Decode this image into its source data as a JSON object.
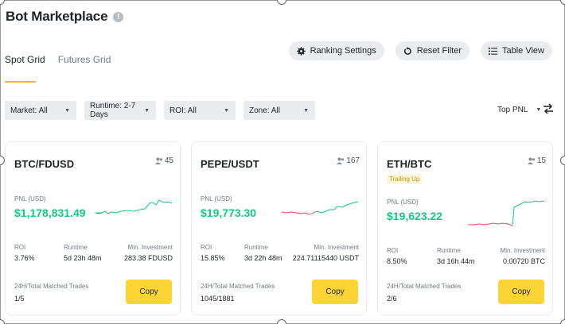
{
  "header": {
    "title": "Bot Marketplace",
    "info_icon": "info-icon"
  },
  "tabs": [
    {
      "label": "Spot Grid",
      "active": true
    },
    {
      "label": "Futures Grid",
      "active": false
    }
  ],
  "actions": {
    "ranking_settings": "Ranking Settings",
    "reset_filter": "Reset Filter",
    "table_view": "Table View"
  },
  "filters": {
    "market": "Market: All",
    "runtime": "Runtime: 2-7 Days",
    "roi": "ROI: All",
    "zone": "Zone: All"
  },
  "sort": {
    "label": "Top PNL"
  },
  "colors": {
    "positive": "#0ecb81",
    "negative": "#f6465d",
    "accent": "#fcd535",
    "tag_text": "#c99400"
  },
  "labels": {
    "pnl": "PNL (USD)",
    "roi": "ROI",
    "runtime": "Runtime",
    "min_investment": "Min. Investment",
    "matched_trades": "24H/Total Matched Trades",
    "copy": "Copy"
  },
  "cards": [
    {
      "pair": "BTC/FDUSD",
      "users": "45",
      "pnl": "$1,178,831.49",
      "roi": "3.76%",
      "runtime": "5d 23h 48m",
      "min_investment": "283.38 FDUSD",
      "trades": "1/5"
    },
    {
      "pair": "PEPE/USDT",
      "users": "167",
      "pnl": "$19,773.30",
      "roi": "15.85%",
      "runtime": "3d 22h 48m",
      "min_investment": "224.71115440 USDT",
      "trades": "1045/1881"
    },
    {
      "pair": "ETH/BTC",
      "users": "15",
      "tag": "Trailing Up",
      "pnl": "$19,623.22",
      "roi": "8.50%",
      "runtime": "3d 16h 44m",
      "min_investment": "0.00720 BTC",
      "trades": "2/6"
    }
  ]
}
